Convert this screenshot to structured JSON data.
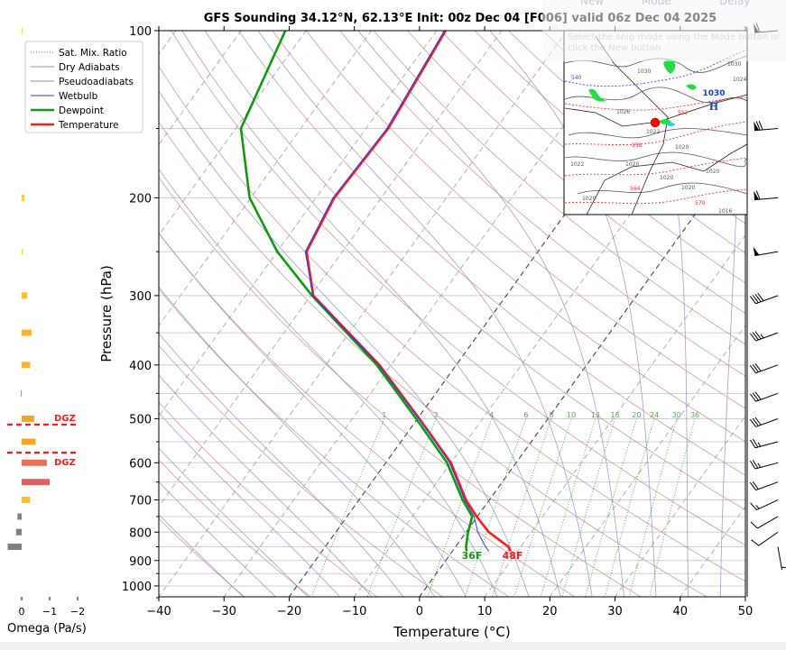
{
  "snip_overlay": {
    "new_label": "New",
    "mode_label": "Mode",
    "delay_label": "Delay",
    "hint": "Select the snip mode using the Mode button or click the New button"
  },
  "chart_data": {
    "type": "line",
    "subtype": "skew-t log-p",
    "title": "GFS Sounding 34.12°N, 62.13°E Init: 00z Dec 04 [F006] valid 06z Dec 04 2025",
    "xlabel": "Temperature (°C)",
    "ylabel": "Pressure (hPa)",
    "xlim": [
      -40,
      50
    ],
    "ylim": [
      1050,
      100
    ],
    "y_scale": "log",
    "grid": true,
    "x_ticks": [
      "−40",
      "−30",
      "−20",
      "−10",
      "0",
      "10",
      "20",
      "30",
      "40",
      "50"
    ],
    "x_tick_values": [
      -40,
      -30,
      -20,
      -10,
      0,
      10,
      20,
      30,
      40,
      50
    ],
    "y_ticks": [
      "100",
      "200",
      "300",
      "400",
      "500",
      "600",
      "700",
      "800",
      "900",
      "1000"
    ],
    "y_tick_values": [
      100,
      200,
      300,
      400,
      500,
      600,
      700,
      800,
      900,
      1000
    ],
    "legend": {
      "placement": "top-left",
      "entries": [
        {
          "label": "Sat. Mix. Ratio",
          "color": "#2e9e2e",
          "style": "dotted"
        },
        {
          "label": "Dry Adiabats",
          "color": "#d08080",
          "style": "solid"
        },
        {
          "label": "Pseudoadiabats",
          "color": "#8888cc",
          "style": "solid"
        },
        {
          "label": "Wetbulb",
          "color": "#1f3fff",
          "style": "solid"
        },
        {
          "label": "Dewpoint",
          "color": "#109a10",
          "style": "solid"
        },
        {
          "label": "Temperature",
          "color": "#ff1a1a",
          "style": "solid"
        }
      ]
    },
    "highlighted_isotherms": [
      -20,
      0
    ],
    "series": [
      {
        "name": "Temperature",
        "color": "#ff1a1a",
        "pressure": [
          100,
          150,
          200,
          250,
          300,
          400,
          500,
          600,
          700,
          750,
          800,
          850,
          866
        ],
        "values": [
          -58.6,
          -56.6,
          -57.2,
          -55.5,
          -49.6,
          -31.8,
          -19.7,
          -10.0,
          -3.6,
          -0.1,
          3.5,
          8.1,
          8.9
        ]
      },
      {
        "name": "Dewpoint",
        "color": "#109a10",
        "pressure": [
          100,
          150,
          200,
          250,
          300,
          400,
          500,
          600,
          700,
          750,
          800,
          850,
          866
        ],
        "values": [
          -83.2,
          -79.2,
          -70.2,
          -60.0,
          -49.8,
          -32.2,
          -20.2,
          -10.6,
          -4.1,
          -0.8,
          0.3,
          1.6,
          2.2
        ]
      },
      {
        "name": "Wetbulb",
        "color": "#1f3fff",
        "pressure": [
          100,
          150,
          200,
          250,
          300,
          400,
          500,
          600,
          700,
          750,
          800,
          850,
          866
        ],
        "values": [
          -58.8,
          -56.8,
          -57.4,
          -55.7,
          -49.7,
          -31.9,
          -19.8,
          -10.2,
          -3.8,
          -0.5,
          1.8,
          4.6,
          5.6
        ]
      }
    ],
    "surface_labels": {
      "dewpoint": "36F",
      "temperature": "48F"
    },
    "mixing_ratio_labels": [
      "1",
      "2",
      "4",
      "6",
      "8",
      "10",
      "13",
      "16",
      "20",
      "24",
      "30",
      "36"
    ],
    "mixing_ratio_values": [
      1,
      2,
      4,
      6,
      8,
      10,
      13,
      16,
      20,
      24,
      30,
      36
    ],
    "winds": {
      "units": "kt",
      "pressure": [
        100,
        150,
        200,
        250,
        300,
        350,
        400,
        450,
        500,
        550,
        600,
        650,
        700,
        750,
        800,
        850
      ],
      "speed": [
        60,
        70,
        60,
        50,
        40,
        35,
        30,
        30,
        30,
        25,
        25,
        20,
        15,
        10,
        10,
        5
      ],
      "direction": [
        265,
        265,
        265,
        260,
        250,
        250,
        250,
        250,
        250,
        255,
        255,
        250,
        245,
        240,
        235,
        170
      ]
    },
    "omega": {
      "xlabel": "Omega (Pa/s)",
      "x_ticks": [
        "0",
        "−1",
        "−2"
      ],
      "x_tick_values": [
        0,
        -1,
        -2
      ],
      "pressure": [
        100,
        200,
        250,
        300,
        350,
        400,
        450,
        500,
        550,
        600,
        650,
        700,
        750,
        800,
        850
      ],
      "values": [
        -0.02,
        -0.1,
        -0.05,
        -0.2,
        -0.35,
        -0.3,
        0.03,
        -0.45,
        -0.5,
        -0.9,
        -1.0,
        -0.3,
        0.15,
        0.2,
        0.5
      ],
      "colors": [
        "#fbe04a",
        "#fbd040",
        "#fbe04a",
        "#fbc02d",
        "#f9b233",
        "#f9b233",
        "#999999",
        "#f5a623",
        "#f5a623",
        "#e8735a",
        "#e06060",
        "#fbc02d",
        "#808080",
        "#808080",
        "#808080"
      ]
    },
    "dgz": {
      "label": "DGZ",
      "top_pressure": 512,
      "bottom_pressure": 576,
      "color": "#ff1a1a"
    },
    "inset_map": {
      "contour_labels": [
        "540",
        "1030",
        "1026",
        "1030",
        "552",
        "1020",
        "1022",
        "558",
        "1020",
        "1022",
        "1020",
        "564",
        "1020",
        "1020",
        "570",
        "1016",
        "1020",
        "1024"
      ],
      "high_label": "H",
      "high_value": "1030",
      "location_marker_color": "#ff0000"
    }
  }
}
